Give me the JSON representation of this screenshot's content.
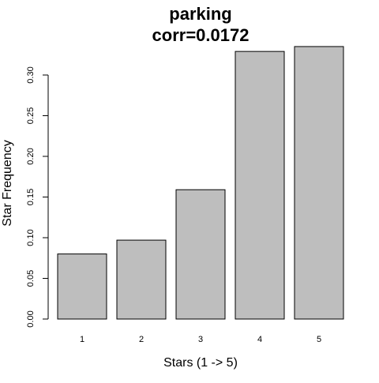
{
  "chart_data": {
    "type": "bar",
    "title": "parking",
    "subtitle": "corr=0.0172",
    "xlabel": "Stars (1 -> 5)",
    "ylabel": "Star Frequency",
    "categories": [
      "1",
      "2",
      "3",
      "4",
      "5"
    ],
    "values": [
      0.08,
      0.097,
      0.159,
      0.329,
      0.335
    ],
    "ylim": [
      0,
      0.335
    ],
    "yticks": [
      "0.00",
      "0.05",
      "0.10",
      "0.15",
      "0.20",
      "0.25",
      "0.30"
    ],
    "ytick_values": [
      0,
      0.05,
      0.1,
      0.15,
      0.2,
      0.25,
      0.3
    ],
    "grid": false,
    "bar_fill": "#bebebe",
    "bar_stroke": "#000000"
  }
}
